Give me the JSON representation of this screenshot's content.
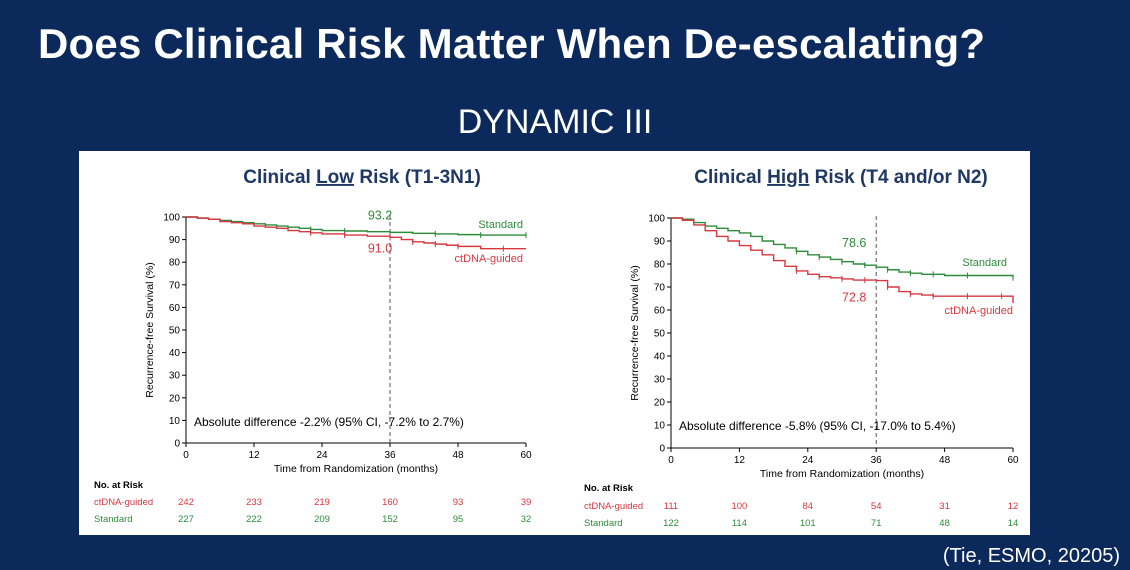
{
  "slide": {
    "title": "Does Clinical Risk Matter When De-escalating?",
    "subtitle": "DYNAMIC III",
    "citation": "(Tie, ESMO, 20205)"
  },
  "colors": {
    "standard": "#2e8b3a",
    "ctdna": "#d7373f",
    "heading": "#1f3864",
    "background": "#0b2a5b"
  },
  "chart_data": [
    {
      "type": "line",
      "title_prefix": "Clinical ",
      "title_emph": "Low",
      "title_suffix": " Risk (T1-3N1)",
      "xlabel": "Time from Randomization (months)",
      "ylabel": "Recurrence-free Survival (%)",
      "xlim": [
        0,
        60
      ],
      "ylim": [
        0,
        100
      ],
      "xticks": [
        0,
        12,
        24,
        36,
        48,
        60
      ],
      "yticks": [
        0,
        10,
        20,
        30,
        40,
        50,
        60,
        70,
        80,
        90,
        100
      ],
      "reference_line_x": 36,
      "series": [
        {
          "name": "Standard",
          "color": "#2e8b3a",
          "points": [
            [
              0,
              100
            ],
            [
              2,
              99.5
            ],
            [
              4,
              99
            ],
            [
              6,
              98.5
            ],
            [
              8,
              98
            ],
            [
              10,
              97.5
            ],
            [
              12,
              97
            ],
            [
              14,
              96.5
            ],
            [
              16,
              96
            ],
            [
              18,
              95.5
            ],
            [
              20,
              95
            ],
            [
              22,
              94.5
            ],
            [
              24,
              94
            ],
            [
              28,
              93.8
            ],
            [
              32,
              93.5
            ],
            [
              36,
              93.2
            ],
            [
              40,
              92.8
            ],
            [
              44,
              92.5
            ],
            [
              48,
              92.2
            ],
            [
              52,
              92
            ],
            [
              56,
              92
            ],
            [
              60,
              92
            ]
          ],
          "label_value": "93.2",
          "end_label": "Standard"
        },
        {
          "name": "ctDNA-guided",
          "color": "#d7373f",
          "points": [
            [
              0,
              100
            ],
            [
              2,
              99.5
            ],
            [
              4,
              99
            ],
            [
              6,
              98
            ],
            [
              8,
              97.5
            ],
            [
              10,
              97
            ],
            [
              12,
              96
            ],
            [
              14,
              95.5
            ],
            [
              16,
              95
            ],
            [
              18,
              94
            ],
            [
              20,
              93.5
            ],
            [
              22,
              93
            ],
            [
              24,
              92.5
            ],
            [
              28,
              92
            ],
            [
              32,
              91.5
            ],
            [
              36,
              91.0
            ],
            [
              38,
              90
            ],
            [
              40,
              89
            ],
            [
              42,
              88.5
            ],
            [
              44,
              88
            ],
            [
              46,
              87.5
            ],
            [
              48,
              87
            ],
            [
              52,
              86
            ],
            [
              56,
              86
            ],
            [
              60,
              86
            ]
          ],
          "label_value": "91.0",
          "end_label": "ctDNA-guided"
        }
      ],
      "annotation": "Absolute difference -2.2% (95% CI, -7.2% to 2.7%)",
      "risk_table": {
        "header": "No. at Risk",
        "rows": [
          {
            "name": "ctDNA-guided",
            "values": [
              "242",
              "233",
              "219",
              "160",
              "93",
              "39"
            ]
          },
          {
            "name": "Standard",
            "values": [
              "227",
              "222",
              "209",
              "152",
              "95",
              "32"
            ]
          }
        ]
      }
    },
    {
      "type": "line",
      "title_prefix": "Clinical ",
      "title_emph": "High",
      "title_suffix": " Risk (T4 and/or N2)",
      "xlabel": "Time from Randomization (months)",
      "ylabel": "Recurrence-free Survival (%)",
      "xlim": [
        0,
        60
      ],
      "ylim": [
        0,
        100
      ],
      "xticks": [
        0,
        12,
        24,
        36,
        48,
        60
      ],
      "yticks": [
        0,
        10,
        20,
        30,
        40,
        50,
        60,
        70,
        80,
        90,
        100
      ],
      "reference_line_x": 36,
      "series": [
        {
          "name": "Standard",
          "color": "#2e8b3a",
          "points": [
            [
              0,
              100
            ],
            [
              2,
              99.5
            ],
            [
              4,
              98
            ],
            [
              6,
              96.5
            ],
            [
              8,
              95.5
            ],
            [
              10,
              94.5
            ],
            [
              12,
              93.5
            ],
            [
              14,
              92
            ],
            [
              16,
              90
            ],
            [
              18,
              88.5
            ],
            [
              20,
              87
            ],
            [
              22,
              85.5
            ],
            [
              24,
              84
            ],
            [
              26,
              83
            ],
            [
              28,
              82
            ],
            [
              30,
              81
            ],
            [
              32,
              80
            ],
            [
              34,
              79.5
            ],
            [
              36,
              78.6
            ],
            [
              38,
              77.5
            ],
            [
              40,
              76.5
            ],
            [
              42,
              76
            ],
            [
              44,
              75.5
            ],
            [
              46,
              75.5
            ],
            [
              48,
              75
            ],
            [
              52,
              75
            ],
            [
              56,
              75
            ],
            [
              60,
              74
            ]
          ],
          "label_value": "78.6",
          "end_label": "Standard"
        },
        {
          "name": "ctDNA-guided",
          "color": "#d7373f",
          "points": [
            [
              0,
              100
            ],
            [
              2,
              99
            ],
            [
              4,
              97
            ],
            [
              6,
              94.5
            ],
            [
              8,
              92
            ],
            [
              10,
              90
            ],
            [
              12,
              88
            ],
            [
              14,
              86
            ],
            [
              16,
              84
            ],
            [
              18,
              81.5
            ],
            [
              20,
              79
            ],
            [
              22,
              77
            ],
            [
              24,
              75.5
            ],
            [
              26,
              74.5
            ],
            [
              28,
              74
            ],
            [
              30,
              73.5
            ],
            [
              32,
              73
            ],
            [
              34,
              73
            ],
            [
              36,
              72.8
            ],
            [
              38,
              70
            ],
            [
              40,
              68
            ],
            [
              42,
              67
            ],
            [
              44,
              66.5
            ],
            [
              46,
              66
            ],
            [
              48,
              66
            ],
            [
              52,
              66
            ],
            [
              56,
              66
            ],
            [
              58,
              66
            ],
            [
              60,
              63
            ]
          ],
          "label_value": "72.8",
          "end_label": "ctDNA-guided"
        }
      ],
      "annotation": "Absolute difference -5.8% (95% CI, -17.0% to 5.4%)",
      "risk_table": {
        "header": "No. at Risk",
        "rows": [
          {
            "name": "ctDNA-guided",
            "values": [
              "111",
              "100",
              "84",
              "54",
              "31",
              "12"
            ]
          },
          {
            "name": "Standard",
            "values": [
              "122",
              "114",
              "101",
              "71",
              "48",
              "14"
            ]
          }
        ]
      }
    }
  ]
}
